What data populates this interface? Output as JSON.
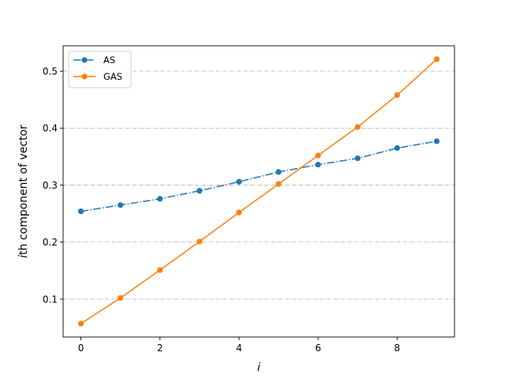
{
  "chart_data": {
    "type": "line",
    "xlabel": "i",
    "ylabel": "ith component of vector",
    "ylabel_italic_part": "i",
    "ylabel_rest": "th component of vector",
    "xlim": [
      -0.45,
      9.45
    ],
    "ylim": [
      0.0335,
      0.5445
    ],
    "xticks": [
      0,
      2,
      4,
      6,
      8
    ],
    "xtick_labels": [
      "0",
      "2",
      "4",
      "6",
      "8"
    ],
    "yticks": [
      0.1,
      0.2,
      0.3,
      0.4,
      0.5
    ],
    "ytick_labels": [
      "0.1",
      "0.2",
      "0.3",
      "0.4",
      "0.5"
    ],
    "grid": "horizontal dash-dot",
    "legend_position": "upper-left",
    "x": [
      0,
      1,
      2,
      3,
      4,
      5,
      6,
      7,
      8,
      9
    ],
    "series": [
      {
        "name": "AS",
        "color": "#1f77b4",
        "linestyle": "dashdot",
        "marker": "circle",
        "values": [
          0.254,
          0.265,
          0.276,
          0.29,
          0.306,
          0.323,
          0.336,
          0.347,
          0.365,
          0.377
        ]
      },
      {
        "name": "GAS",
        "color": "#ff7f0e",
        "linestyle": "solid",
        "marker": "circle",
        "values": [
          0.057,
          0.102,
          0.151,
          0.201,
          0.252,
          0.302,
          0.352,
          0.402,
          0.458,
          0.521
        ]
      }
    ]
  }
}
